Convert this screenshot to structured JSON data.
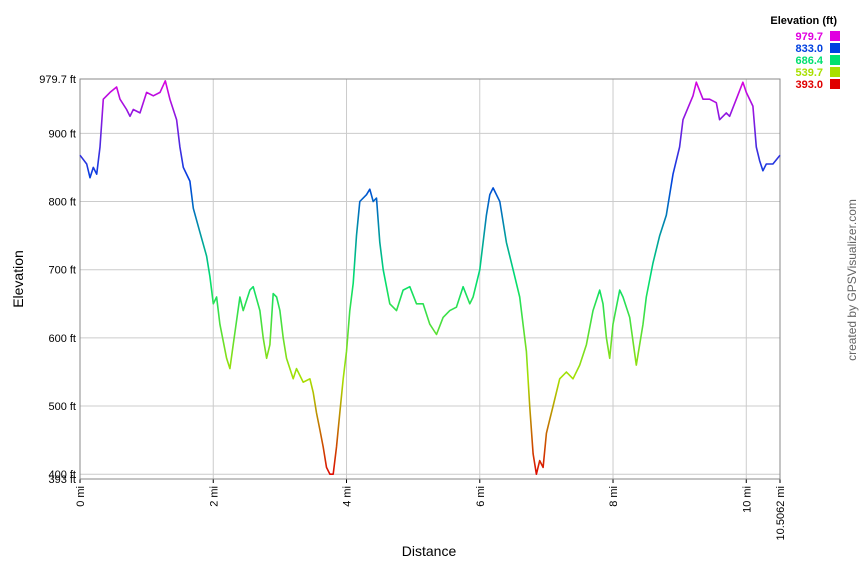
{
  "chart_data": {
    "type": "line",
    "x_label": "Distance",
    "y_label": "Elevation",
    "credit": "created by GPSVisualizer.com",
    "legend_title": "Elevation (ft)",
    "colorscale": [
      {
        "value": 979.7,
        "label": "979.7",
        "color": "#e000e0"
      },
      {
        "value": 833,
        "label": "833.0",
        "color": "#0040e0"
      },
      {
        "value": 686.4,
        "label": "686.4",
        "color": "#00e070"
      },
      {
        "value": 539.7,
        "label": "539.7",
        "color": "#a8e000"
      },
      {
        "value": 393,
        "label": "393.0",
        "color": "#e00000"
      }
    ],
    "xlim": [
      0,
      10.5062
    ],
    "ylim": [
      393,
      979.7
    ],
    "xticks": [
      {
        "value": 0,
        "label": "0 mi"
      },
      {
        "value": 2,
        "label": "2 mi"
      },
      {
        "value": 4,
        "label": "4 mi"
      },
      {
        "value": 6,
        "label": "6 mi"
      },
      {
        "value": 8,
        "label": "8 mi"
      },
      {
        "value": 10,
        "label": "10 mi"
      },
      {
        "value": 10.5062,
        "label": "10.5062 mi"
      }
    ],
    "yticks": [
      {
        "value": 393,
        "label": "393 ft"
      },
      {
        "value": 400,
        "label": "400 ft"
      },
      {
        "value": 500,
        "label": "500 ft"
      },
      {
        "value": 600,
        "label": "600 ft"
      },
      {
        "value": 700,
        "label": "700 ft"
      },
      {
        "value": 800,
        "label": "800 ft"
      },
      {
        "value": 900,
        "label": "900 ft"
      },
      {
        "value": 979.7,
        "label": "979.7 ft"
      }
    ],
    "grid": true,
    "x": [
      0,
      0.1,
      0.15,
      0.2,
      0.25,
      0.3,
      0.35,
      0.45,
      0.55,
      0.6,
      0.7,
      0.75,
      0.8,
      0.9,
      1.0,
      1.1,
      1.2,
      1.28,
      1.35,
      1.45,
      1.5,
      1.55,
      1.65,
      1.7,
      1.8,
      1.9,
      1.95,
      2.0,
      2.05,
      2.1,
      2.2,
      2.25,
      2.3,
      2.4,
      2.45,
      2.55,
      2.6,
      2.7,
      2.75,
      2.8,
      2.85,
      2.9,
      2.95,
      3.0,
      3.05,
      3.1,
      3.2,
      3.25,
      3.35,
      3.45,
      3.5,
      3.55,
      3.6,
      3.65,
      3.7,
      3.75,
      3.8,
      3.85,
      3.9,
      3.95,
      4.0,
      4.05,
      4.1,
      4.15,
      4.2,
      4.3,
      4.35,
      4.4,
      4.45,
      4.5,
      4.55,
      4.65,
      4.75,
      4.85,
      4.95,
      5.05,
      5.15,
      5.25,
      5.35,
      5.45,
      5.55,
      5.65,
      5.75,
      5.85,
      5.9,
      6.0,
      6.1,
      6.15,
      6.2,
      6.3,
      6.4,
      6.5,
      6.6,
      6.7,
      6.75,
      6.8,
      6.85,
      6.9,
      6.95,
      7.0,
      7.05,
      7.1,
      7.2,
      7.3,
      7.4,
      7.5,
      7.6,
      7.7,
      7.8,
      7.85,
      7.9,
      7.95,
      8.0,
      8.1,
      8.15,
      8.25,
      8.35,
      8.45,
      8.5,
      8.6,
      8.7,
      8.8,
      8.9,
      9.0,
      9.05,
      9.2,
      9.25,
      9.35,
      9.45,
      9.55,
      9.6,
      9.7,
      9.75,
      9.85,
      9.95,
      10.0,
      10.1,
      10.15,
      10.2,
      10.25,
      10.3,
      10.4,
      10.5062
    ],
    "values": [
      868,
      855,
      835,
      850,
      840,
      880,
      950,
      960,
      968,
      950,
      935,
      925,
      935,
      930,
      960,
      955,
      960,
      977,
      950,
      920,
      880,
      850,
      830,
      790,
      755,
      720,
      690,
      650,
      660,
      620,
      570,
      555,
      590,
      660,
      640,
      670,
      675,
      640,
      600,
      570,
      590,
      665,
      660,
      640,
      600,
      570,
      540,
      555,
      535,
      540,
      520,
      490,
      465,
      440,
      410,
      400,
      400,
      440,
      490,
      540,
      580,
      640,
      680,
      750,
      800,
      810,
      818,
      800,
      805,
      740,
      700,
      650,
      640,
      670,
      675,
      650,
      650,
      620,
      605,
      630,
      640,
      645,
      675,
      650,
      660,
      700,
      780,
      810,
      820,
      800,
      740,
      700,
      660,
      580,
      500,
      430,
      400,
      420,
      410,
      460,
      480,
      500,
      540,
      550,
      540,
      560,
      590,
      640,
      670,
      650,
      600,
      570,
      620,
      670,
      660,
      630,
      560,
      620,
      660,
      710,
      750,
      780,
      840,
      880,
      920,
      955,
      975,
      950,
      950,
      945,
      920,
      930,
      925,
      950,
      975,
      960,
      940,
      880,
      860,
      845,
      855,
      855,
      868
    ]
  }
}
